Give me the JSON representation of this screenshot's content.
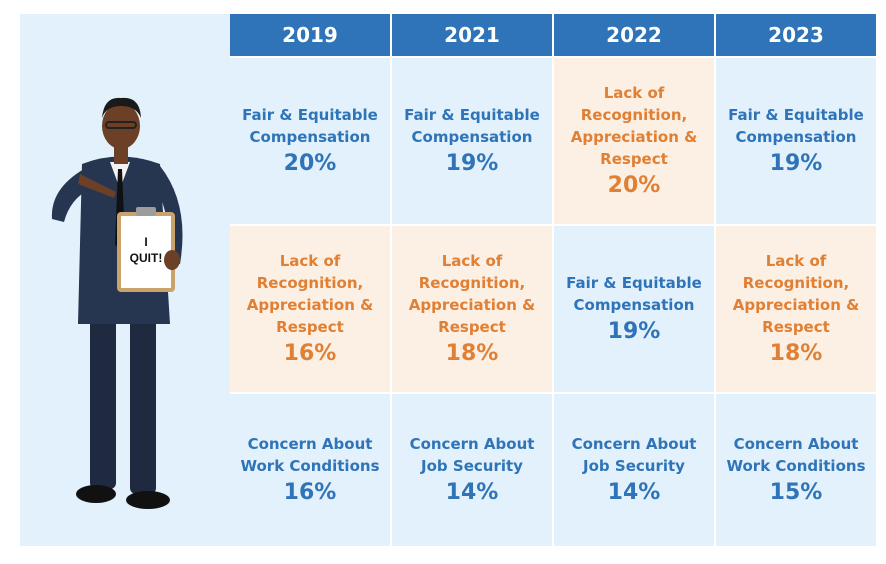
{
  "chart_data": {
    "type": "table",
    "columns": [
      "2019",
      "2021",
      "2022",
      "2023"
    ],
    "rows": [
      [
        {
          "reason": "Fair & Equitable\nCompensation",
          "value": "20%",
          "color": "blue"
        },
        {
          "reason": "Fair & Equitable\nCompensation",
          "value": "19%",
          "color": "blue"
        },
        {
          "reason": "Lack of\nRecognition,\nAppreciation &\nRespect",
          "value": "20%",
          "color": "orange"
        },
        {
          "reason": "Fair & Equitable\nCompensation",
          "value": "19%",
          "color": "blue"
        }
      ],
      [
        {
          "reason": "Lack of\nRecognition,\nAppreciation &\nRespect",
          "value": "16%",
          "color": "orange"
        },
        {
          "reason": "Lack of\nRecognition,\nAppreciation &\nRespect",
          "value": "18%",
          "color": "orange"
        },
        {
          "reason": "Fair & Equitable\nCompensation",
          "value": "19%",
          "color": "blue"
        },
        {
          "reason": "Lack of\nRecognition,\nAppreciation &\nRespect",
          "value": "18%",
          "color": "orange"
        }
      ],
      [
        {
          "reason": "Concern About\nWork Conditions",
          "value": "16%",
          "color": "blue"
        },
        {
          "reason": "Concern About\nJob Security",
          "value": "14%",
          "color": "blue"
        },
        {
          "reason": "Concern About\nJob Security",
          "value": "14%",
          "color": "blue"
        },
        {
          "reason": "Concern About\nWork Conditions",
          "value": "15%",
          "color": "blue"
        }
      ]
    ],
    "colors": {
      "header": "#2f74b8",
      "blue_bg": "#e2f1fb",
      "blue_text": "#2f74b8",
      "orange_bg": "#fcefe3",
      "orange_text": "#e08035"
    }
  },
  "illustration": {
    "sign_text": "I\nQUIT!"
  }
}
